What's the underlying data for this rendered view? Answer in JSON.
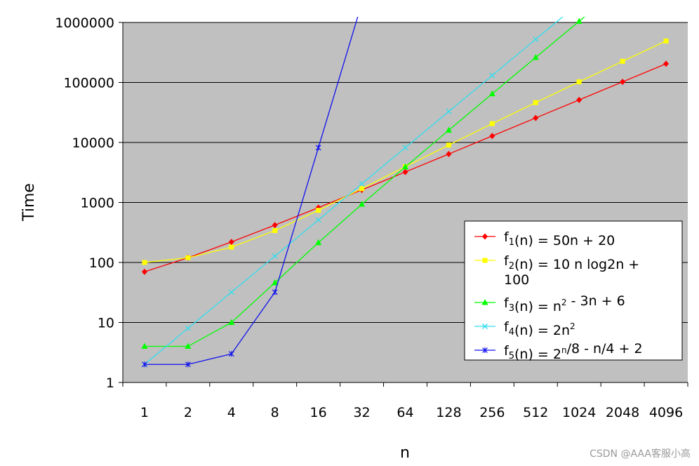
{
  "chart_data": {
    "type": "line",
    "xlabel": "n",
    "ylabel": "Time",
    "y_scale": "log",
    "ylim": [
      1,
      1000000
    ],
    "grid": true,
    "legend_placement": "center-right",
    "plot_background": "#c0c0c0",
    "categories": [
      "1",
      "2",
      "4",
      "8",
      "16",
      "32",
      "64",
      "128",
      "256",
      "512",
      "1024",
      "2048",
      "4096"
    ],
    "y_ticks": [
      "1",
      "10",
      "100",
      "1000",
      "10000",
      "100000",
      "1000000"
    ],
    "series": [
      {
        "label_parts": [
          [
            "f",
            ""
          ],
          [
            "1",
            "sub"
          ],
          [
            "(n) = 50n + 20",
            ""
          ]
        ],
        "label_lines": 1,
        "color": "#ff0000",
        "marker": "diamond",
        "values": [
          70,
          120,
          220,
          420,
          820,
          1620,
          3220,
          6420,
          12820,
          25620,
          51220,
          102420,
          204820
        ]
      },
      {
        "label_parts": [
          [
            "f",
            ""
          ],
          [
            "2",
            "sub"
          ],
          [
            "(n) = 10 n log2n +",
            ""
          ],
          [
            "\n100",
            ""
          ]
        ],
        "label_lines": 2,
        "color": "#ffff00",
        "marker": "square",
        "values": [
          100,
          120,
          180,
          340,
          740,
          1700,
          3940,
          9060,
          20580,
          46180,
          102500,
          225380,
          491620
        ]
      },
      {
        "label_parts": [
          [
            "f",
            ""
          ],
          [
            "3",
            "sub"
          ],
          [
            "(n) = n",
            ""
          ],
          [
            "2",
            "sup"
          ],
          [
            " - 3n + 6",
            ""
          ]
        ],
        "label_lines": 1,
        "color": "#00ff00",
        "marker": "triangle",
        "values": [
          4,
          4,
          10,
          46,
          214,
          934,
          3910,
          16006,
          64774,
          260614,
          1045510,
          null,
          null
        ]
      },
      {
        "label_parts": [
          [
            "f",
            ""
          ],
          [
            "4",
            "sub"
          ],
          [
            "(n) = 2n",
            ""
          ],
          [
            "2",
            "sup"
          ]
        ],
        "label_lines": 1,
        "color": "#33ddee",
        "marker": "x",
        "values": [
          2,
          8,
          32,
          128,
          512,
          2048,
          8192,
          32768,
          131072,
          524288,
          null,
          null,
          null
        ]
      },
      {
        "label_parts": [
          [
            "f",
            ""
          ],
          [
            "5",
            "sub"
          ],
          [
            "(n) = 2",
            ""
          ],
          [
            "n",
            "sup"
          ],
          [
            "/8 - n/4 + 2",
            ""
          ]
        ],
        "label_lines": 1,
        "color": "#1010ee",
        "marker": "star",
        "values": [
          2,
          2,
          3,
          32,
          8190,
          null,
          null,
          null,
          null,
          null,
          null,
          null,
          null
        ]
      }
    ]
  },
  "watermark": "CSDN @AAA客服小高"
}
